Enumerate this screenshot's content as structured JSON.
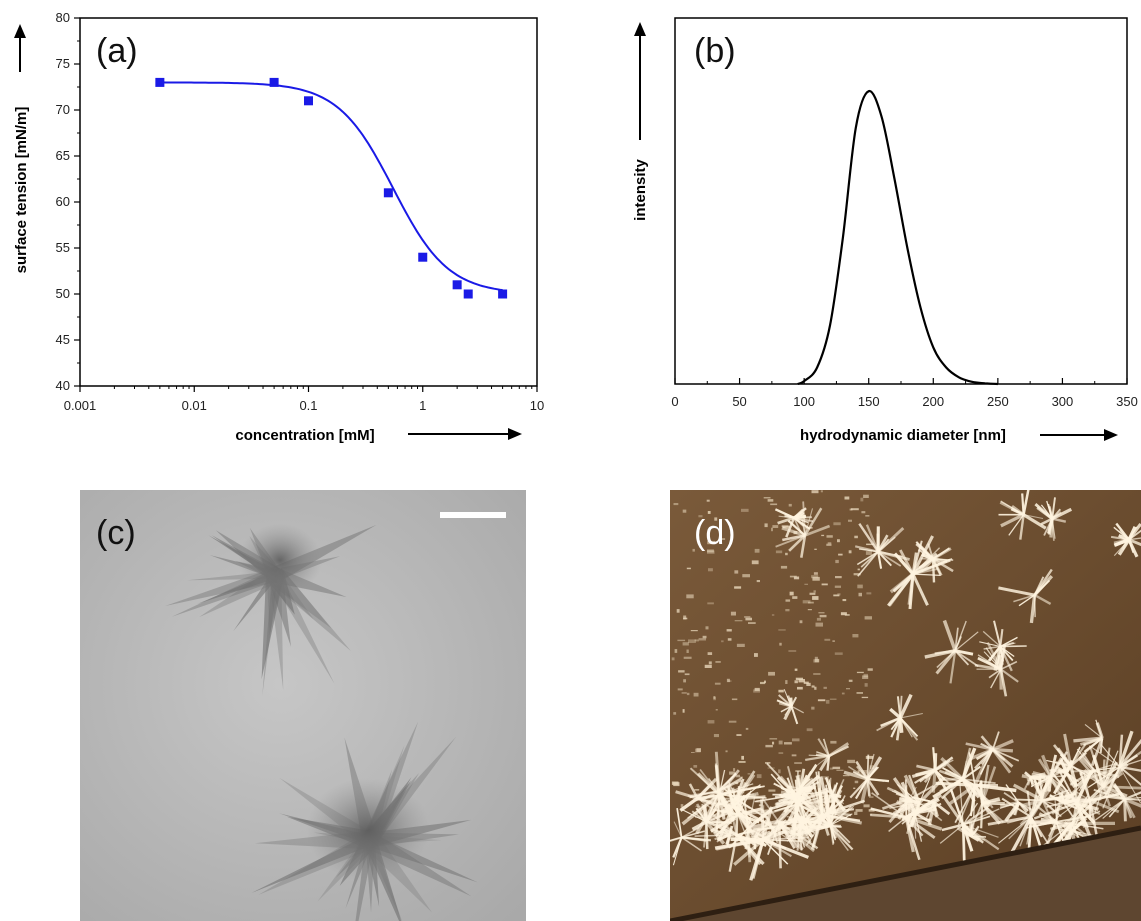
{
  "panels": {
    "a": {
      "letter": "(a)"
    },
    "b": {
      "letter": "(b)"
    },
    "c": {
      "letter": "(c)"
    },
    "d": {
      "letter": "(d)"
    }
  },
  "chart_data": [
    {
      "type": "scatter",
      "panel": "(a)",
      "xlabel": "concentration [mM]",
      "ylabel": "surface tension [mN/m]",
      "x_scale": "log",
      "xlim": [
        0.001,
        10
      ],
      "ylim": [
        40,
        80
      ],
      "xtick_labels": [
        "0.001",
        "0.01",
        "0.1",
        "1",
        "10"
      ],
      "ytick_labels": [
        "40",
        "45",
        "50",
        "55",
        "60",
        "65",
        "70",
        "75",
        "80"
      ],
      "marker_color": "#1a1ae6",
      "fit_color": "#1a1ae6",
      "points": [
        {
          "x": 0.005,
          "y": 73
        },
        {
          "x": 0.05,
          "y": 73
        },
        {
          "x": 0.1,
          "y": 71
        },
        {
          "x": 0.5,
          "y": 61
        },
        {
          "x": 1,
          "y": 54
        },
        {
          "x": 2,
          "y": 51
        },
        {
          "x": 2.5,
          "y": 50
        },
        {
          "x": 5,
          "y": 50
        }
      ],
      "fit": {
        "form": "sigmoid in log10(x)",
        "top": 73.0,
        "bottom": 50.0,
        "x_mid": 0.55,
        "slope": 1.8
      },
      "grid": false,
      "legend": "none"
    },
    {
      "type": "line",
      "panel": "(b)",
      "xlabel": "hydrodynamic diameter [nm]",
      "ylabel": "intensity",
      "xlim": [
        0,
        350
      ],
      "xtick_labels": [
        "0",
        "50",
        "100",
        "150",
        "200",
        "250",
        "300",
        "350"
      ],
      "y_ticks_shown": false,
      "line_color": "#000000",
      "series": [
        {
          "x": [
            95,
            100,
            110,
            120,
            130,
            140,
            150,
            160,
            170,
            180,
            190,
            200,
            210,
            220,
            230,
            240,
            250
          ],
          "y": [
            0,
            0.8,
            4.5,
            16,
            40,
            70,
            80,
            73,
            56,
            37,
            21,
            10,
            4.5,
            1.8,
            0.6,
            0.2,
            0
          ]
        }
      ],
      "grid": false,
      "legend": "none"
    }
  ]
}
